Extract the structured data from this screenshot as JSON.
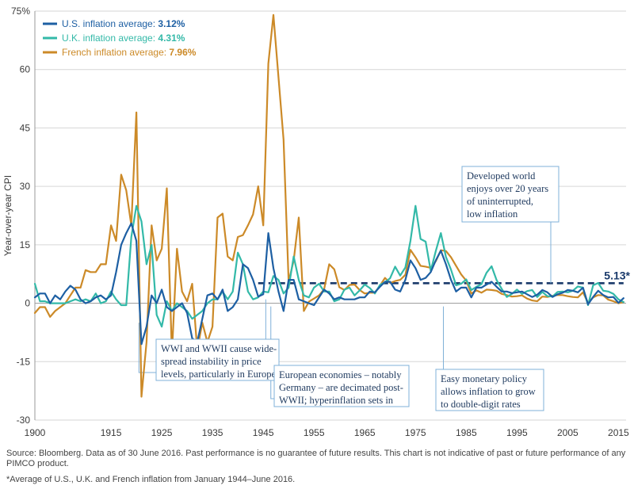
{
  "chart_data": {
    "type": "line",
    "ylabel": "Year-over-year CPI",
    "xlabel": "",
    "xlim": [
      1900,
      2016.5
    ],
    "ylim": [
      -30,
      75
    ],
    "x_ticks": [
      "1900",
      "1915",
      "1925",
      "1935",
      "1945",
      "1955",
      "1965",
      "1975",
      "1985",
      "1995",
      "2005",
      "2015"
    ],
    "x_tick_values": [
      1900,
      1915,
      1925,
      1935,
      1945,
      1955,
      1965,
      1975,
      1985,
      1995,
      2005,
      2015
    ],
    "y_ticks": [
      "75%",
      "60",
      "45",
      "30",
      "15",
      "0",
      "-15",
      "-30"
    ],
    "y_tick_values": [
      75,
      60,
      45,
      30,
      15,
      0,
      -15,
      -30
    ],
    "grid": true,
    "legend_position": "top-left",
    "legend": [
      {
        "label": "U.S. inflation average: ",
        "value": "3.12%",
        "color": "#1d5fa3"
      },
      {
        "label": "U.K. inflation average: ",
        "value": "4.31%",
        "color": "#33b9a8"
      },
      {
        "label": "French inflation average: ",
        "value": "7.96%",
        "color": "#cc8a28"
      }
    ],
    "reference_line": {
      "value": 5.13,
      "x_start": 1944,
      "x_end": 2016,
      "label": "5.13*",
      "color": "#1a3a6b"
    },
    "annotations": [
      {
        "lines": [
          "WWI and WWII cause wide-",
          "spread instability in price",
          "levels, particularly in Europe"
        ],
        "pointer_x": [
          1920.5,
          1945.5
        ]
      },
      {
        "lines": [
          "European economies – notably",
          "Germany – are decimated post-",
          "WWII; hyperinflation sets in"
        ],
        "pointer_x": [
          1946.5
        ]
      },
      {
        "lines": [
          "Easy monetary policy",
          "allows inflation to grow",
          "to double-digit rates"
        ],
        "pointer_x": [
          1980.5
        ]
      },
      {
        "lines": [
          "Developed world",
          "enjoys over 20 years",
          "of uninterrupted,",
          "low inflation"
        ],
        "pointer_x": [
          2001
        ]
      }
    ],
    "series": [
      {
        "name": "U.S.",
        "color": "#1d5fa3",
        "x": [
          1900,
          1901,
          1902,
          1903,
          1904,
          1905,
          1906,
          1907,
          1908,
          1909,
          1910,
          1911,
          1912,
          1913,
          1914,
          1915,
          1916,
          1917,
          1918,
          1919,
          1920,
          1921,
          1922,
          1923,
          1924,
          1925,
          1926,
          1927,
          1928,
          1929,
          1930,
          1931,
          1932,
          1933,
          1934,
          1935,
          1936,
          1937,
          1938,
          1939,
          1940,
          1941,
          1942,
          1943,
          1944,
          1945,
          1946,
          1947,
          1948,
          1949,
          1950,
          1951,
          1952,
          1953,
          1954,
          1955,
          1956,
          1957,
          1958,
          1959,
          1960,
          1961,
          1962,
          1963,
          1964,
          1965,
          1966,
          1967,
          1968,
          1969,
          1970,
          1971,
          1972,
          1973,
          1974,
          1975,
          1976,
          1977,
          1978,
          1979,
          1980,
          1981,
          1982,
          1983,
          1984,
          1985,
          1986,
          1987,
          1988,
          1989,
          1990,
          1991,
          1992,
          1993,
          1994,
          1995,
          1996,
          1997,
          1998,
          1999,
          2000,
          2001,
          2002,
          2003,
          2004,
          2005,
          2006,
          2007,
          2008,
          2009,
          2010,
          2011,
          2012,
          2013,
          2014,
          2015,
          2016
        ],
        "y": [
          1.5,
          2.5,
          2.5,
          0,
          2,
          1,
          3,
          4.5,
          3.5,
          1,
          0,
          0.5,
          1.5,
          2,
          1,
          2,
          8,
          15,
          18,
          20.5,
          16,
          -10.5,
          -6,
          2,
          0,
          3.5,
          -1,
          -2,
          -1,
          0,
          -2.5,
          -9,
          -10,
          -4,
          2,
          2.5,
          1,
          3.5,
          -2,
          -1,
          1,
          10,
          9,
          6,
          1.7,
          2.3,
          18,
          9,
          3,
          -2,
          6,
          6,
          1,
          0.5,
          0,
          -0.5,
          1.5,
          3.5,
          2.5,
          1,
          1.5,
          1,
          1,
          1,
          1.5,
          1.5,
          3,
          2.8,
          4.2,
          5.5,
          5.5,
          3.5,
          3,
          6,
          11,
          9,
          6,
          6.5,
          8,
          11,
          13.5,
          10,
          6,
          3,
          4,
          4,
          1.5,
          4,
          4,
          4.8,
          5.5,
          4.2,
          3,
          3,
          2.6,
          2.8,
          3,
          2.3,
          1.6,
          2.2,
          3.4,
          2.8,
          1.6,
          2.3,
          2.7,
          3.4,
          3.2,
          2.8,
          4,
          -0.3,
          1.6,
          3.2,
          2.1,
          1.5,
          1.6,
          0.1,
          1.3
        ]
      },
      {
        "name": "U.K.",
        "color": "#33b9a8",
        "x": [
          1900,
          1901,
          1902,
          1903,
          1904,
          1905,
          1906,
          1907,
          1908,
          1909,
          1910,
          1911,
          1912,
          1913,
          1914,
          1915,
          1916,
          1917,
          1918,
          1919,
          1920,
          1921,
          1922,
          1923,
          1924,
          1925,
          1926,
          1927,
          1928,
          1929,
          1930,
          1931,
          1932,
          1933,
          1934,
          1935,
          1936,
          1937,
          1938,
          1939,
          1940,
          1941,
          1942,
          1943,
          1944,
          1945,
          1946,
          1947,
          1948,
          1949,
          1950,
          1951,
          1952,
          1953,
          1954,
          1955,
          1956,
          1957,
          1958,
          1959,
          1960,
          1961,
          1962,
          1963,
          1964,
          1965,
          1966,
          1967,
          1968,
          1969,
          1970,
          1971,
          1972,
          1973,
          1974,
          1975,
          1976,
          1977,
          1978,
          1979,
          1980,
          1981,
          1982,
          1983,
          1984,
          1985,
          1986,
          1987,
          1988,
          1989,
          1990,
          1991,
          1992,
          1993,
          1994,
          1995,
          1996,
          1997,
          1998,
          1999,
          2000,
          2001,
          2002,
          2003,
          2004,
          2005,
          2006,
          2007,
          2008,
          2009,
          2010,
          2011,
          2012,
          2013,
          2014,
          2015,
          2016
        ],
        "y": [
          5,
          0.5,
          0.5,
          0,
          0,
          0,
          0,
          0.5,
          1,
          0.5,
          1,
          0.5,
          2.5,
          0,
          0.5,
          3,
          1,
          -0.5,
          -0.5,
          17,
          25,
          21,
          10,
          15,
          -3,
          -6,
          0.5,
          -2,
          0,
          -1,
          -2,
          -4,
          -3,
          -2,
          0,
          1,
          1,
          3,
          1,
          3,
          13,
          10,
          3,
          1,
          1.5,
          3,
          2.8,
          7,
          6,
          2.5,
          4,
          12,
          6,
          2,
          1.5,
          4,
          5,
          3,
          3,
          0.5,
          1,
          3.5,
          4,
          2,
          3.3,
          4.8,
          3.9,
          2.5,
          4.7,
          5.4,
          6.4,
          9.4,
          7.1,
          9.2,
          16,
          25,
          16.5,
          15.8,
          8.3,
          13.4,
          18,
          11.9,
          8.6,
          4.6,
          5,
          6.1,
          3.4,
          4.2,
          4.9,
          7.8,
          9.5,
          5.9,
          3.7,
          1.6,
          2.4,
          3.5,
          2.4,
          3.1,
          3.4,
          1.6,
          2.9,
          1.8,
          1.7,
          2.9,
          3,
          2.8,
          3.2,
          4.3,
          4,
          -0.5,
          4.6,
          5.2,
          3.2,
          3,
          2.4,
          1,
          0.3
        ]
      },
      {
        "name": "France",
        "color": "#cc8a28",
        "x": [
          1900,
          1901,
          1902,
          1903,
          1904,
          1905,
          1906,
          1907,
          1908,
          1909,
          1910,
          1911,
          1912,
          1913,
          1914,
          1915,
          1916,
          1917,
          1918,
          1919,
          1920,
          1921,
          1922,
          1923,
          1924,
          1925,
          1926,
          1927,
          1928,
          1929,
          1930,
          1931,
          1932,
          1933,
          1934,
          1935,
          1936,
          1937,
          1938,
          1939,
          1940,
          1941,
          1942,
          1943,
          1944,
          1945,
          1946,
          1947,
          1948,
          1949,
          1950,
          1951,
          1952,
          1953,
          1954,
          1955,
          1956,
          1957,
          1958,
          1959,
          1960,
          1961,
          1962,
          1963,
          1964,
          1965,
          1966,
          1967,
          1968,
          1969,
          1970,
          1971,
          1972,
          1973,
          1974,
          1975,
          1976,
          1977,
          1978,
          1979,
          1980,
          1981,
          1982,
          1983,
          1984,
          1985,
          1986,
          1987,
          1988,
          1989,
          1990,
          1991,
          1992,
          1993,
          1994,
          1995,
          1996,
          1997,
          1998,
          1999,
          2000,
          2001,
          2002,
          2003,
          2004,
          2005,
          2006,
          2007,
          2008,
          2009,
          2010,
          2011,
          2012,
          2013,
          2014,
          2015,
          2016
        ],
        "y": [
          -2.5,
          -1,
          -1,
          -3.5,
          -2,
          -1,
          0,
          2,
          4,
          4,
          8.5,
          8,
          8,
          10,
          10,
          20,
          16,
          33,
          29,
          20,
          49,
          -24,
          -10,
          20,
          11,
          14,
          29.5,
          -13,
          14,
          3,
          0.5,
          5,
          -12,
          -5,
          -10,
          -6,
          22,
          23,
          12,
          11,
          17,
          17.5,
          20,
          22.8,
          30,
          20,
          61.5,
          74,
          58,
          42,
          5.5,
          11,
          22,
          -2,
          0.4,
          1.2,
          2,
          3.6,
          10,
          8.7,
          4.1,
          3.4,
          4.7,
          4.8,
          3.4,
          2.5,
          2.7,
          2.7,
          4.5,
          6.5,
          5.2,
          5.7,
          6,
          7.3,
          13.7,
          11.8,
          9.6,
          9.4,
          9.1,
          10.8,
          13.6,
          13.4,
          11.8,
          9.6,
          7.4,
          5.8,
          2.5,
          3.3,
          2.7,
          3.5,
          3.4,
          3.2,
          2.4,
          2.1,
          1.7,
          1.8,
          2,
          1.2,
          0.7,
          0.5,
          1.7,
          1.6,
          1.9,
          2.1,
          2.1,
          1.8,
          1.6,
          1.5,
          2.8,
          0.1,
          1.5,
          2.1,
          2,
          0.9,
          0.5,
          0,
          0.3
        ]
      }
    ]
  },
  "footer": {
    "source_line1": "Source: Bloomberg. Data as of 30 June 2016. Past performance is no guarantee of future results. This chart is not indicative of past or future performance of any",
    "source_line2": "PIMCO product.",
    "footnote": "*Average of U.S., U.K. and French inflation from January 1944–June 2016."
  }
}
